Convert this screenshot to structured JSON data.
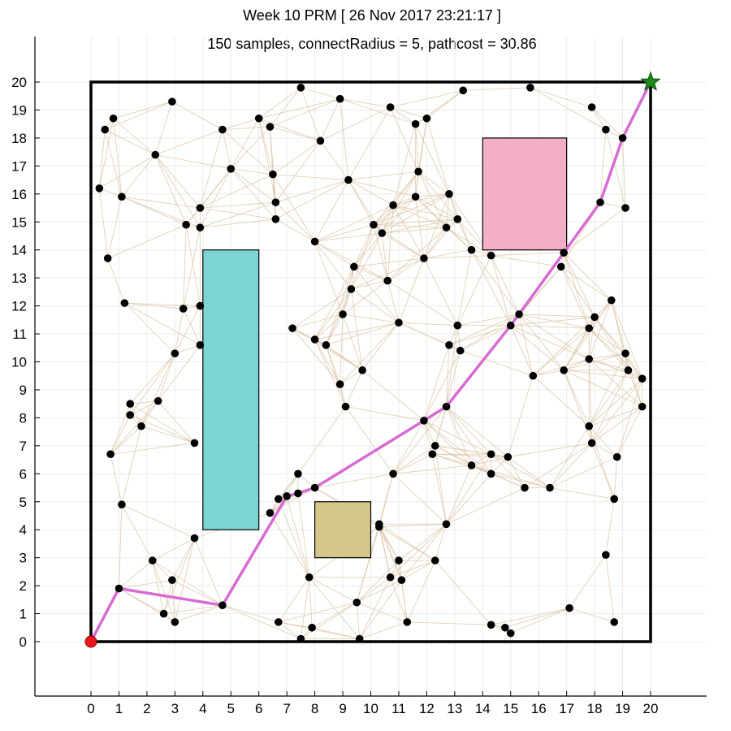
{
  "chart_data": {
    "type": "scatter",
    "title": "Week 10 PRM [ 26 Nov 2017 23:21:17 ]",
    "subtitle": "150 samples, connectRadius = 5, pathcost = 30.86",
    "xlabel": "",
    "ylabel": "",
    "xlim": [
      -2,
      22
    ],
    "ylim": [
      -2,
      22
    ],
    "xticks": [
      "0",
      "1",
      "2",
      "3",
      "4",
      "5",
      "6",
      "7",
      "8",
      "9",
      "10",
      "11",
      "12",
      "13",
      "14",
      "15",
      "16",
      "17",
      "18",
      "19",
      "20"
    ],
    "yticks": [
      "0",
      "1",
      "2",
      "3",
      "4",
      "5",
      "6",
      "7",
      "8",
      "9",
      "10",
      "11",
      "12",
      "13",
      "14",
      "15",
      "16",
      "17",
      "18",
      "19",
      "20"
    ],
    "grid": true,
    "connect_radius": 5,
    "boundary": {
      "x": [
        0,
        20
      ],
      "y": [
        0,
        20
      ],
      "color": "#000000"
    },
    "start": {
      "x": 0,
      "y": 0,
      "color": "#e8171b"
    },
    "goal": {
      "x": 20,
      "y": 20,
      "color": "#1b8a1b"
    },
    "obstacles": [
      {
        "x0": 4,
        "y0": 4,
        "x1": 6,
        "y1": 14,
        "color": "#7dd5d3"
      },
      {
        "x0": 14,
        "y0": 14,
        "x1": 17,
        "y1": 18,
        "color": "#f3aec8"
      },
      {
        "x0": 8,
        "y0": 3,
        "x1": 10,
        "y1": 5,
        "color": "#d3c78b"
      }
    ],
    "samples": [
      [
        0.8,
        18.7
      ],
      [
        0.5,
        18.3
      ],
      [
        2.9,
        19.3
      ],
      [
        7.5,
        19.8
      ],
      [
        8.9,
        19.4
      ],
      [
        10.7,
        19.1
      ],
      [
        11.6,
        18.5
      ],
      [
        12.0,
        18.7
      ],
      [
        13.3,
        19.7
      ],
      [
        15.7,
        19.8
      ],
      [
        17.9,
        19.1
      ],
      [
        18.4,
        18.3
      ],
      [
        19.0,
        18.0
      ],
      [
        2.3,
        17.4
      ],
      [
        4.7,
        18.3
      ],
      [
        6.0,
        18.7
      ],
      [
        6.4,
        18.4
      ],
      [
        8.2,
        17.9
      ],
      [
        5.0,
        16.9
      ],
      [
        6.5,
        16.7
      ],
      [
        9.2,
        16.5
      ],
      [
        11.7,
        16.8
      ],
      [
        0.3,
        16.2
      ],
      [
        1.1,
        15.9
      ],
      [
        3.9,
        15.5
      ],
      [
        6.6,
        15.7
      ],
      [
        10.8,
        15.6
      ],
      [
        11.6,
        15.9
      ],
      [
        12.8,
        16.0
      ],
      [
        18.2,
        15.7
      ],
      [
        19.1,
        15.5
      ],
      [
        3.4,
        14.9
      ],
      [
        3.9,
        14.8
      ],
      [
        6.6,
        15.1
      ],
      [
        10.1,
        14.9
      ],
      [
        10.4,
        14.6
      ],
      [
        12.7,
        14.8
      ],
      [
        13.1,
        15.1
      ],
      [
        8.0,
        14.3
      ],
      [
        13.6,
        14.0
      ],
      [
        14.3,
        13.8
      ],
      [
        16.9,
        13.9
      ],
      [
        0.6,
        13.7
      ],
      [
        9.4,
        13.4
      ],
      [
        11.9,
        13.7
      ],
      [
        16.8,
        13.4
      ],
      [
        10.6,
        12.9
      ],
      [
        9.3,
        12.6
      ],
      [
        1.2,
        12.1
      ],
      [
        3.3,
        11.9
      ],
      [
        3.9,
        12.0
      ],
      [
        18.6,
        12.2
      ],
      [
        9.0,
        11.7
      ],
      [
        15.3,
        11.7
      ],
      [
        18.0,
        11.6
      ],
      [
        17.8,
        11.2
      ],
      [
        7.2,
        11.2
      ],
      [
        11.0,
        11.4
      ],
      [
        13.1,
        11.3
      ],
      [
        15.0,
        11.3
      ],
      [
        8.0,
        10.8
      ],
      [
        8.4,
        10.6
      ],
      [
        3.0,
        10.3
      ],
      [
        3.9,
        10.6
      ],
      [
        12.8,
        10.6
      ],
      [
        13.2,
        10.4
      ],
      [
        17.8,
        10.1
      ],
      [
        19.1,
        10.3
      ],
      [
        9.7,
        9.7
      ],
      [
        15.8,
        9.5
      ],
      [
        16.9,
        9.7
      ],
      [
        19.2,
        9.7
      ],
      [
        19.7,
        9.4
      ],
      [
        8.9,
        9.2
      ],
      [
        1.4,
        8.5
      ],
      [
        2.4,
        8.6
      ],
      [
        9.1,
        8.4
      ],
      [
        12.7,
        8.4
      ],
      [
        19.7,
        8.4
      ],
      [
        1.4,
        8.1
      ],
      [
        1.8,
        7.7
      ],
      [
        11.9,
        7.9
      ],
      [
        17.8,
        7.7
      ],
      [
        3.7,
        7.1
      ],
      [
        17.9,
        7.1
      ],
      [
        12.3,
        7.0
      ],
      [
        12.2,
        6.7
      ],
      [
        0.7,
        6.7
      ],
      [
        14.3,
        6.7
      ],
      [
        14.9,
        6.6
      ],
      [
        18.8,
        6.6
      ],
      [
        13.6,
        6.3
      ],
      [
        14.3,
        6.0
      ],
      [
        7.4,
        6.0
      ],
      [
        10.8,
        6.0
      ],
      [
        15.5,
        5.5
      ],
      [
        16.4,
        5.5
      ],
      [
        8.0,
        5.5
      ],
      [
        7.0,
        5.2
      ],
      [
        7.4,
        5.3
      ],
      [
        6.7,
        5.1
      ],
      [
        1.1,
        4.9
      ],
      [
        18.7,
        5.1
      ],
      [
        6.4,
        4.6
      ],
      [
        10.3,
        4.2
      ],
      [
        10.3,
        4.1
      ],
      [
        12.7,
        4.2
      ],
      [
        3.7,
        3.7
      ],
      [
        18.4,
        3.1
      ],
      [
        2.2,
        2.9
      ],
      [
        11.0,
        2.9
      ],
      [
        12.3,
        2.9
      ],
      [
        2.9,
        2.2
      ],
      [
        7.8,
        2.3
      ],
      [
        10.7,
        2.3
      ],
      [
        11.1,
        2.2
      ],
      [
        1.0,
        1.9
      ],
      [
        4.7,
        1.3
      ],
      [
        9.5,
        1.4
      ],
      [
        2.6,
        1.0
      ],
      [
        17.1,
        1.2
      ],
      [
        3.0,
        0.7
      ],
      [
        6.7,
        0.7
      ],
      [
        7.9,
        0.5
      ],
      [
        11.3,
        0.7
      ],
      [
        14.3,
        0.6
      ],
      [
        14.8,
        0.5
      ],
      [
        15.0,
        0.3
      ],
      [
        18.7,
        0.7
      ],
      [
        7.5,
        0.1
      ],
      [
        9.6,
        0.1
      ]
    ],
    "path": {
      "color": "#d76bd3",
      "points": [
        [
          0,
          0
        ],
        [
          1.0,
          1.9
        ],
        [
          4.7,
          1.3
        ],
        [
          7.0,
          5.2
        ],
        [
          7.4,
          5.3
        ],
        [
          8.0,
          5.5
        ],
        [
          11.9,
          7.9
        ],
        [
          12.7,
          8.4
        ],
        [
          15.0,
          11.3
        ],
        [
          16.9,
          13.9
        ],
        [
          18.2,
          15.7
        ],
        [
          19.0,
          18.0
        ],
        [
          20,
          20
        ]
      ]
    },
    "edge_color": "#d9c0a0",
    "sample_color": "#000000"
  }
}
